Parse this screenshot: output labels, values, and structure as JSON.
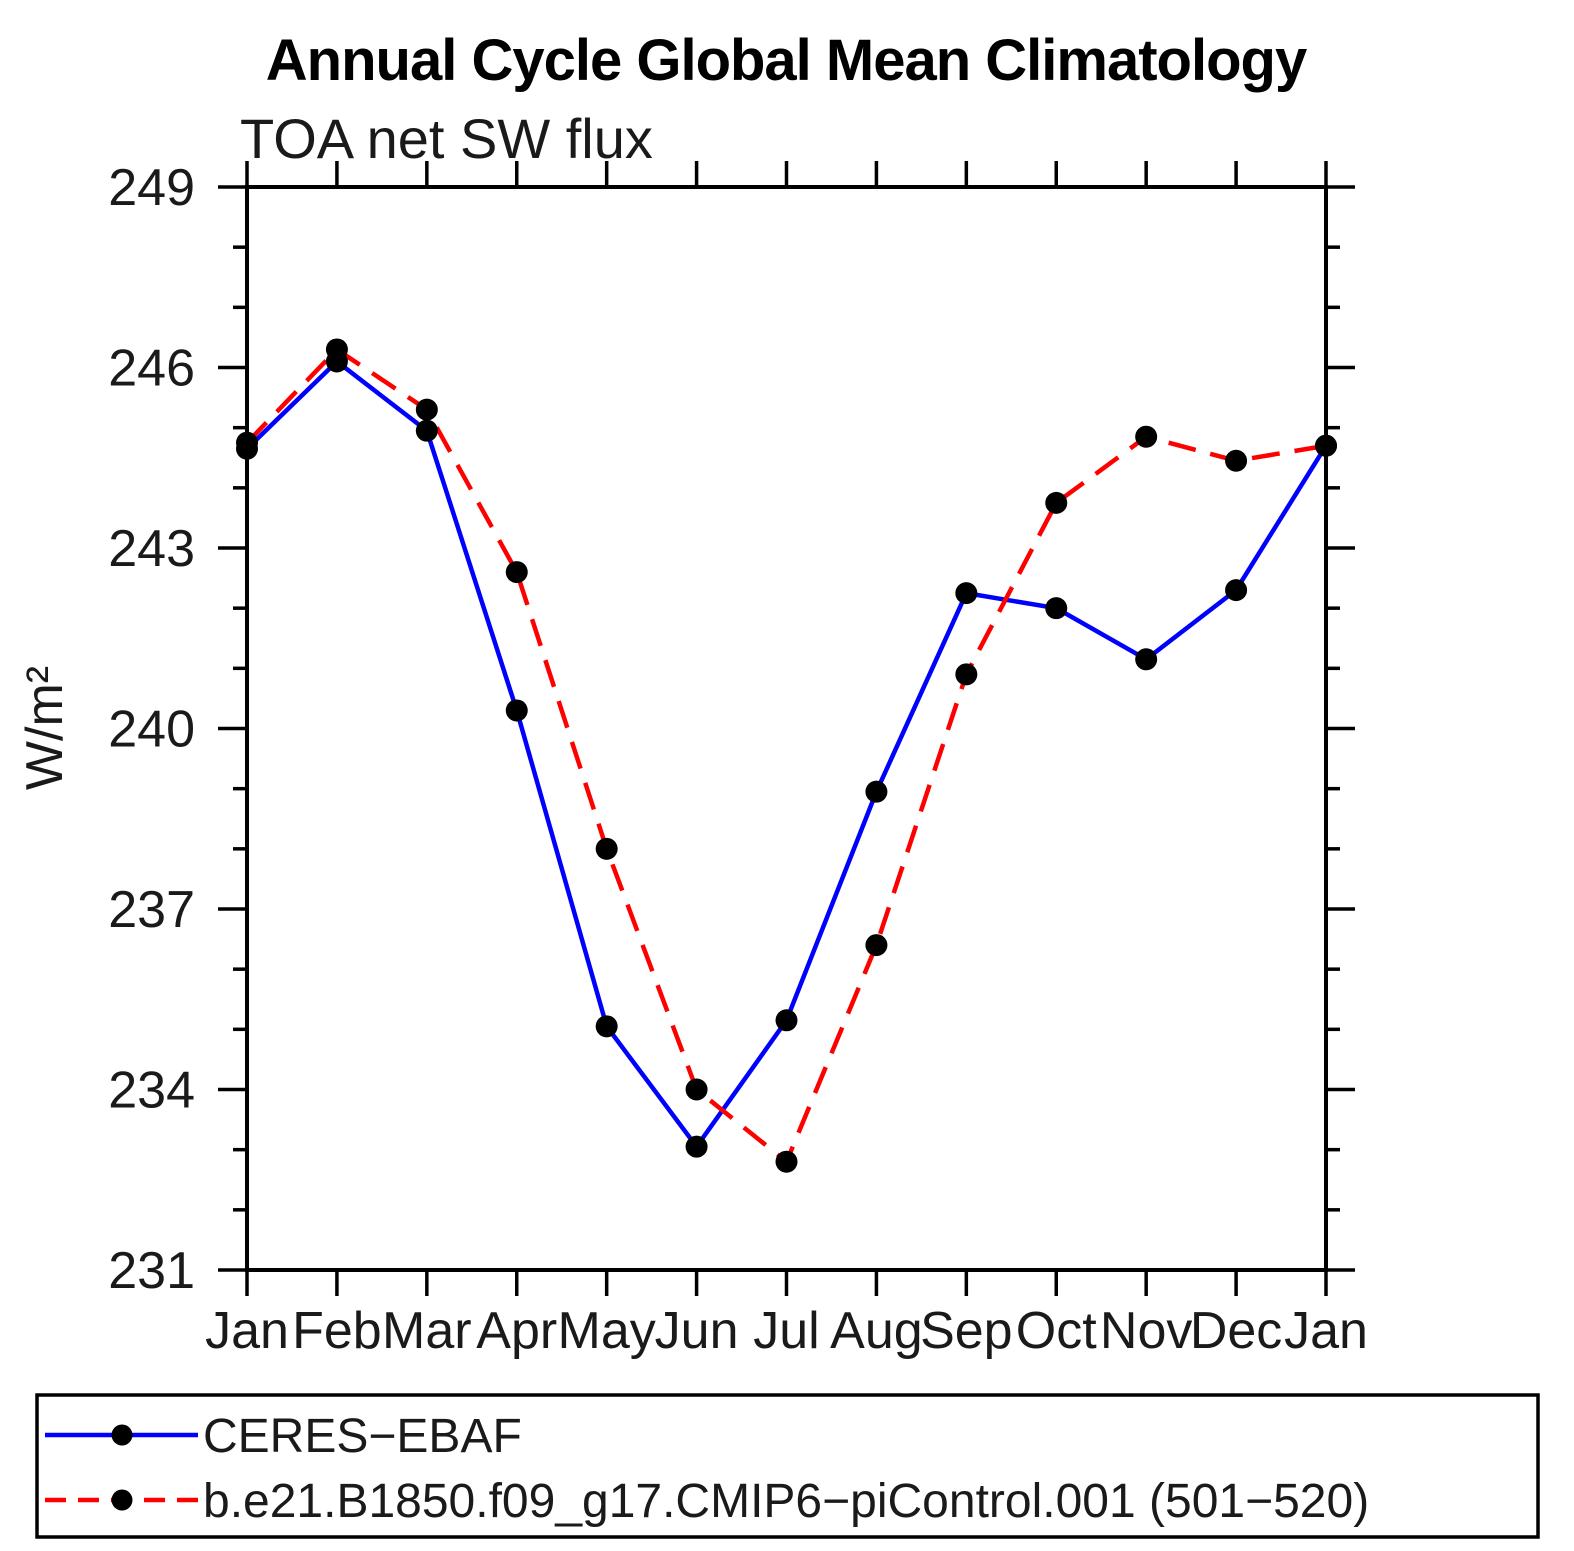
{
  "chart_data": {
    "type": "line",
    "title": "Annual Cycle Global Mean Climatology",
    "subtitle": "TOA net SW flux",
    "ylabel": "W/m²",
    "categories": [
      "Jan",
      "Feb",
      "Mar",
      "Apr",
      "May",
      "Jun",
      "Jul",
      "Aug",
      "Sep",
      "Oct",
      "Nov",
      "Dec",
      "Jan"
    ],
    "ylim": [
      231,
      249
    ],
    "y_major_ticks": [
      231,
      234,
      237,
      240,
      243,
      246,
      249
    ],
    "y_minor_step": 1,
    "grid": false,
    "legend_position": "bottom",
    "frame_color": "#000000",
    "marker_color": "#000000",
    "series": [
      {
        "name": "CERES−EBAF",
        "color": "#0000ff",
        "line_style": "solid",
        "marker": "circle",
        "values": [
          244.65,
          246.1,
          244.95,
          240.3,
          235.05,
          233.05,
          235.15,
          238.95,
          242.25,
          242.0,
          241.15,
          242.3,
          244.7
        ]
      },
      {
        "name": "b.e21.B1850.f09_g17.CMIP6−piControl.001 (501−520)",
        "color": "#ff0000",
        "line_style": "dashed",
        "marker": "circle",
        "values": [
          244.75,
          246.3,
          245.3,
          242.6,
          238.0,
          234.0,
          232.8,
          236.4,
          240.9,
          243.75,
          244.85,
          244.45,
          244.7
        ]
      }
    ]
  }
}
